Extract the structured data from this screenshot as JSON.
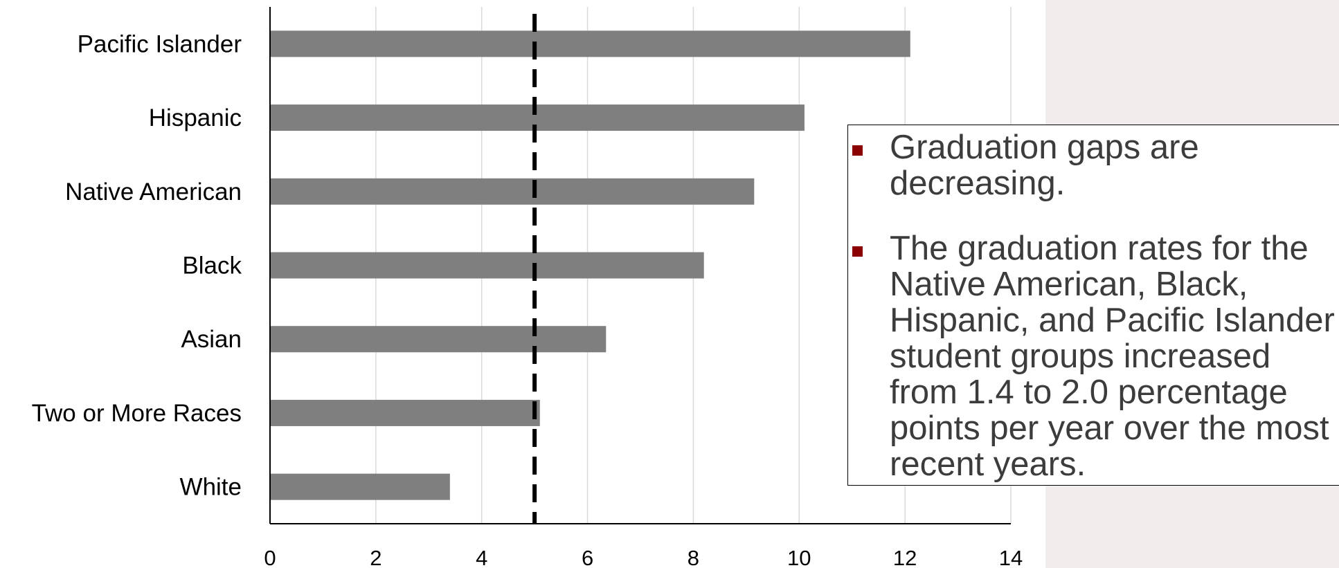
{
  "chart_data": {
    "type": "bar",
    "orientation": "horizontal",
    "categories": [
      "Pacific Islander",
      "Hispanic",
      "Native American",
      "Black",
      "Asian",
      "Two or More Races",
      "White"
    ],
    "values": [
      12.1,
      10.1,
      9.15,
      8.2,
      6.35,
      5.1,
      3.4
    ],
    "bar_color": "#7f7f7f",
    "xlim": [
      0,
      14
    ],
    "x_ticks": [
      "0",
      "2",
      "4",
      "6",
      "8",
      "10",
      "12",
      "14"
    ],
    "reference_line": {
      "x": 5,
      "style": "dashed",
      "color": "#000000"
    },
    "grid": "vertical",
    "title": "",
    "xlabel": "",
    "ylabel": ""
  },
  "notes": [
    {
      "text": "Graduation gaps are decreasing."
    },
    {
      "text": "The graduation rates for the Native American, Black, Hispanic, and Pacific Islander student groups increased from 1.4 to 2.0 percentage points per year over the most recent years."
    }
  ],
  "colors": {
    "bullet": "#8b0000",
    "panel_background": "#f1eded"
  }
}
